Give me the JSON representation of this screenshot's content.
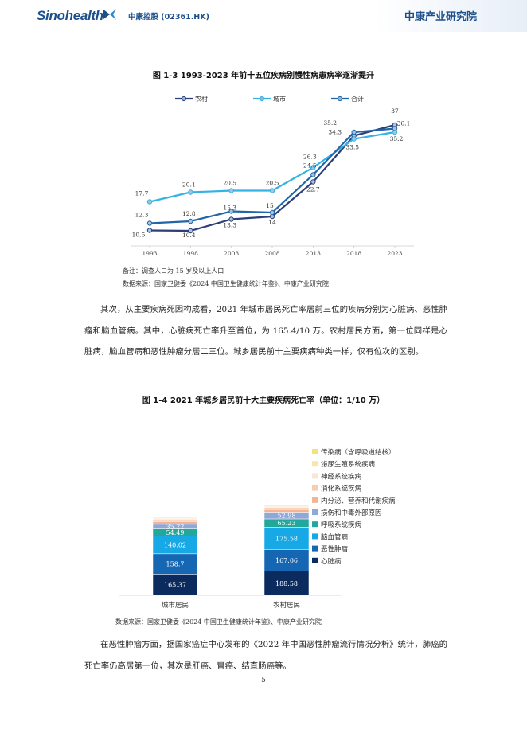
{
  "header": {
    "logo": "Sinohealth",
    "company": "中康控股 (02361.HK)",
    "brand_right": "中康产业研究院"
  },
  "figure1": {
    "title": "图 1-3 1993-2023 年前十五位疾病别慢性病患病率逐渐提升",
    "note": "备注：调查人口为 15 岁及以上人口",
    "source": "数据来源：国家卫健委《2024 中国卫生健康统计年鉴》、中康产业研究院"
  },
  "paragraph1": "其次，从主要疾病死因构成看，2021 年城市居民死亡率居前三位的疾病分别为心脏病、恶性肿瘤和脑血管病。其中，心脏病死亡率升至首位，为 165.4/10 万。农村居民方面，第一位同样是心脏病，脑血管病和恶性肿瘤分居二三位。城乡居民前十主要疾病种类一样，仅有位次的区别。",
  "figure2": {
    "title": "图 1-4 2021 年城乡居民前十大主要疾病死亡率（单位：1/10 万）",
    "source": "数据来源：国家卫健委《2024 中国卫生健康统计年鉴》、中康产业研究院"
  },
  "paragraph2": "在恶性肿瘤方面，据国家癌症中心发布的《2022 年中国恶性肿瘤流行情况分析》统计，肺癌的死亡率仍高居第一位，其次是肝癌、胃癌、结直肠癌等。",
  "page_number": "5",
  "chart_data": [
    {
      "type": "line",
      "x": [
        "1993",
        "1998",
        "2003",
        "2008",
        "2013",
        "2018",
        "2023"
      ],
      "series": [
        {
          "name": "农村",
          "color": "#2c3f78",
          "values": [
            10.5,
            10.4,
            13.3,
            14,
            22.7,
            34.3,
            37
          ],
          "labels": [
            "10.5",
            "10.4",
            "13.3",
            "14",
            "22.7",
            "34.3",
            "37"
          ]
        },
        {
          "name": "城市",
          "color": "#33b3e3",
          "values": [
            17.7,
            20.1,
            20.5,
            20.5,
            26.3,
            33.5,
            35.2
          ],
          "labels": [
            "17.7",
            "20.1",
            "20.5",
            "20.5",
            "26.3",
            "33.5",
            "35.2"
          ]
        },
        {
          "name": "合计",
          "color": "#2166a8",
          "values": [
            12.3,
            12.8,
            15.3,
            15,
            24.5,
            35.2,
            36.1
          ],
          "labels": [
            "12.3",
            "12.8",
            "15.3",
            "15",
            "24.5",
            "35.2",
            "36.1"
          ]
        }
      ],
      "ylim": [
        8,
        40
      ],
      "legend": "top",
      "grid": false
    },
    {
      "type": "bar",
      "stacked": true,
      "categories": [
        "城市居民",
        "农村居民"
      ],
      "series": [
        {
          "name": "心脏病",
          "color": "#0b2a5e",
          "values": [
            165.37,
            188.58
          ],
          "labels": [
            "165.37",
            "188.58"
          ]
        },
        {
          "name": "恶性肿瘤",
          "color": "#1567b3",
          "values": [
            158.7,
            167.06
          ],
          "labels": [
            "158.7",
            "167.06"
          ]
        },
        {
          "name": "脑血管病",
          "color": "#17a9e6",
          "values": [
            140.02,
            175.58
          ],
          "labels": [
            "140.02",
            "175.58"
          ]
        },
        {
          "name": "呼吸系统疾病",
          "color": "#21a89a",
          "values": [
            54.49,
            65.23
          ],
          "labels": [
            "54.49",
            "65.23"
          ]
        },
        {
          "name": "损伤和中毒外部原因",
          "color": "#8fa8d8",
          "values": [
            35.22,
            52.98
          ],
          "labels": [
            "35.22",
            "52.98"
          ]
        },
        {
          "name": "内分泌、营养和代谢疾病",
          "color": "#f3b48f",
          "values": [
            22,
            20
          ],
          "labels": [
            "",
            ""
          ]
        },
        {
          "name": "消化系统疾病",
          "color": "#f8ccb0",
          "values": [
            15,
            15
          ],
          "labels": [
            "",
            ""
          ]
        },
        {
          "name": "神经系统疾病",
          "color": "#fae6d6",
          "values": [
            10,
            10
          ],
          "labels": [
            "",
            ""
          ]
        },
        {
          "name": "泌尿生殖系统疾病",
          "color": "#fbe6a8",
          "values": [
            7,
            8
          ],
          "labels": [
            "",
            ""
          ]
        },
        {
          "name": "传染病（含呼吸道结核）",
          "color": "#f6e27a",
          "values": [
            5,
            7
          ],
          "labels": [
            "",
            ""
          ]
        }
      ],
      "legend": "right",
      "grid": false
    }
  ]
}
